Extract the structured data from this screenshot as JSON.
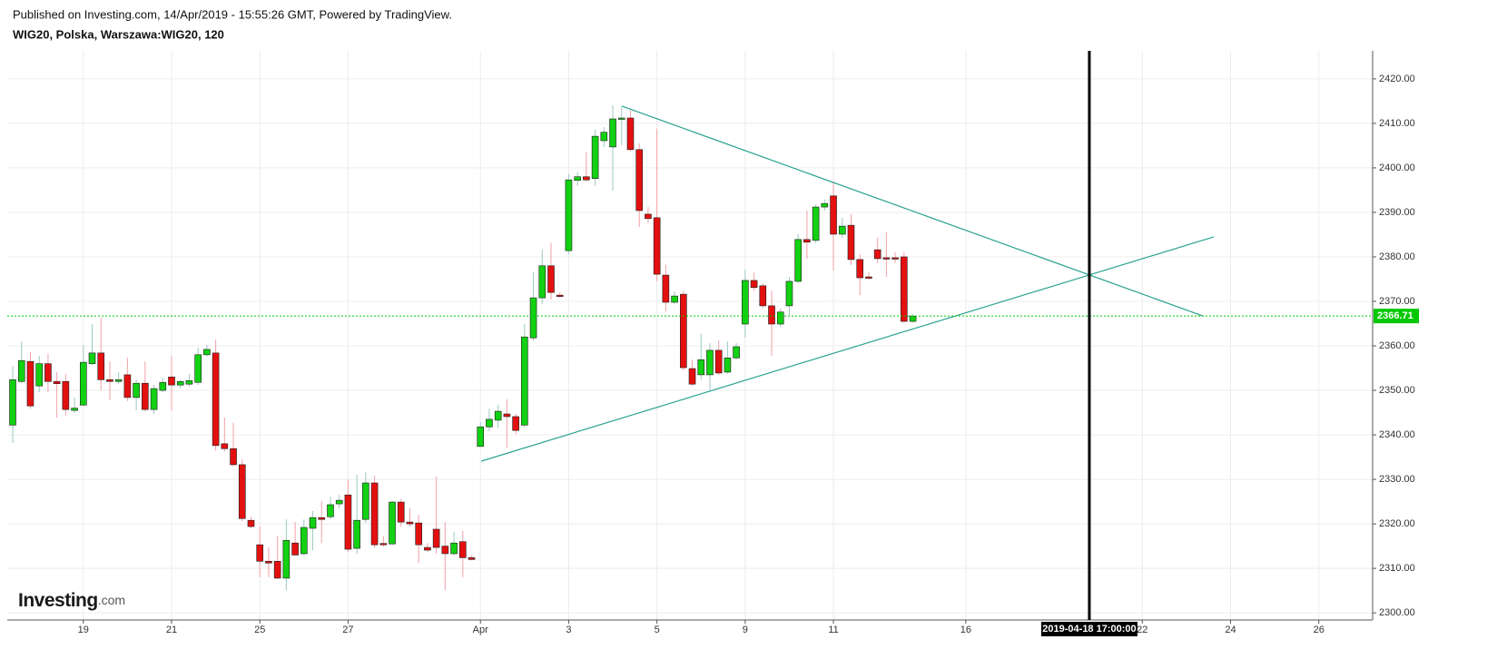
{
  "header": {
    "published": "Published on Investing.com, 14/Apr/2019 - 15:55:26 GMT, Powered by TradingView.",
    "symbol": "WIG20, Polska, Warszawa:WIG20, 120"
  },
  "logo": {
    "main": "Investing",
    "suffix": ".com"
  },
  "chart_data": {
    "type": "candlestick",
    "open": [
      2342.2,
      2352.0,
      2356.5,
      2351.0,
      2356.0,
      2352.0,
      2352.0,
      2345.5,
      2346.7,
      2356.0,
      2358.4,
      2352.4,
      2352.0,
      2353.5,
      2348.4,
      2351.6,
      2345.7,
      2350.0,
      2353.0,
      2351.2,
      2351.4,
      2351.8,
      2358.0,
      2358.4,
      2338.0,
      2336.9,
      2333.3,
      2320.8,
      2315.3,
      2311.6,
      2311.6,
      2307.8,
      2315.7,
      2313.3,
      2319.0,
      2321.4,
      2321.6,
      2324.5,
      2326.5,
      2314.5,
      2321.0,
      2329.2,
      2315.6,
      2315.5,
      2324.9,
      2320.4,
      2320.2,
      2314.7,
      2318.8,
      2315.0,
      2313.3,
      2316.0,
      2312.4,
      2337.4,
      2341.8,
      2343.3,
      2344.7,
      2344.1,
      2342.2,
      2361.8,
      2370.8,
      2378.0,
      2371.4,
      2381.4,
      2397.2,
      2398.0,
      2397.6,
      2406.1,
      2404.7,
      2411.0,
      2411.2,
      2404.1,
      2389.6,
      2388.8,
      2375.9,
      2369.8,
      2371.6,
      2354.9,
      2353.5,
      2353.5,
      2359.0,
      2354.1,
      2357.3,
      2364.9,
      2374.7,
      2373.5,
      2369.0,
      2364.9,
      2369.0,
      2374.5,
      2383.9,
      2383.7,
      2391.2,
      2393.7,
      2385.1,
      2387.1,
      2379.4,
      2375.5,
      2381.6,
      2379.8,
      2379.8,
      2380.0,
      2365.5
    ],
    "high": [
      2355.5,
      2361.0,
      2358.6,
      2357.8,
      2358.2,
      2354.1,
      2353.7,
      2348.4,
      2360.2,
      2364.9,
      2366.3,
      2356.5,
      2354.1,
      2357.3,
      2352.4,
      2356.5,
      2351.2,
      2352.9,
      2357.8,
      2352.4,
      2353.7,
      2359.6,
      2360.2,
      2361.4,
      2343.9,
      2342.7,
      2334.5,
      2321.6,
      2319.4,
      2314.7,
      2317.3,
      2321.0,
      2320.4,
      2321.0,
      2322.9,
      2325.1,
      2326.1,
      2326.5,
      2330.0,
      2331.0,
      2331.6,
      2330.8,
      2317.3,
      2325.1,
      2325.5,
      2323.5,
      2322.0,
      2315.7,
      2330.6,
      2320.4,
      2318.2,
      2318.4,
      2312.9,
      2342.9,
      2345.9,
      2346.7,
      2348.0,
      2344.7,
      2364.9,
      2376.5,
      2381.6,
      2383.1,
      2372.0,
      2398.6,
      2399.0,
      2403.5,
      2408.6,
      2409.2,
      2414.1,
      2413.7,
      2412.9,
      2405.5,
      2391.2,
      2408.8,
      2378.2,
      2372.2,
      2372.4,
      2356.9,
      2362.7,
      2360.6,
      2361.2,
      2361.0,
      2360.6,
      2377.1,
      2376.5,
      2374.1,
      2372.4,
      2368.4,
      2375.5,
      2385.1,
      2390.4,
      2391.8,
      2392.9,
      2396.9,
      2388.8,
      2389.6,
      2380.6,
      2376.5,
      2384.3,
      2385.5,
      2381.0,
      2381.0,
      2367.1
    ],
    "low": [
      2338.2,
      2351.6,
      2345.9,
      2349.6,
      2349.6,
      2343.9,
      2344.3,
      2344.9,
      2346.5,
      2355.7,
      2350.0,
      2347.8,
      2351.4,
      2347.6,
      2345.5,
      2345.3,
      2344.7,
      2349.6,
      2345.5,
      2350.4,
      2350.8,
      2351.2,
      2357.6,
      2336.5,
      2336.3,
      2332.9,
      2320.6,
      2319.0,
      2308.0,
      2308.0,
      2307.6,
      2305.1,
      2312.9,
      2312.9,
      2314.1,
      2315.7,
      2321.0,
      2323.5,
      2313.7,
      2313.3,
      2320.2,
      2314.5,
      2314.9,
      2315.3,
      2319.4,
      2319.4,
      2311.2,
      2313.7,
      2313.3,
      2305.1,
      2312.9,
      2308.0,
      2311.8,
      2337.3,
      2340.8,
      2341.6,
      2337.1,
      2340.2,
      2341.8,
      2361.2,
      2369.4,
      2370.4,
      2370.8,
      2380.6,
      2395.9,
      2396.9,
      2395.9,
      2404.7,
      2394.9,
      2405.1,
      2403.7,
      2386.7,
      2387.6,
      2374.5,
      2367.8,
      2369.4,
      2354.5,
      2351.0,
      2352.4,
      2350.0,
      2353.5,
      2353.7,
      2356.9,
      2361.8,
      2372.4,
      2368.4,
      2357.8,
      2364.3,
      2366.9,
      2374.1,
      2379.6,
      2383.1,
      2390.4,
      2376.9,
      2384.3,
      2378.2,
      2371.4,
      2374.9,
      2378.6,
      2375.5,
      2378.6,
      2365.3,
      2365.3
    ],
    "close": [
      2352.4,
      2356.7,
      2346.5,
      2356.0,
      2352.0,
      2351.5,
      2345.7,
      2346.0,
      2356.3,
      2358.4,
      2352.4,
      2352.0,
      2352.4,
      2348.4,
      2351.6,
      2345.7,
      2350.4,
      2351.8,
      2351.2,
      2352.0,
      2352.2,
      2358.0,
      2359.2,
      2337.6,
      2336.9,
      2333.3,
      2321.2,
      2319.4,
      2311.6,
      2311.2,
      2307.8,
      2316.3,
      2313.0,
      2319.2,
      2321.4,
      2321.0,
      2324.3,
      2325.3,
      2314.3,
      2320.8,
      2329.2,
      2315.3,
      2315.3,
      2324.9,
      2320.4,
      2320.0,
      2315.3,
      2314.1,
      2314.7,
      2313.3,
      2315.7,
      2312.4,
      2312.0,
      2341.8,
      2343.5,
      2345.3,
      2344.1,
      2341.0,
      2362.0,
      2370.8,
      2378.0,
      2372.0,
      2371.2,
      2397.3,
      2398.0,
      2397.3,
      2407.1,
      2408.0,
      2411.0,
      2411.2,
      2404.1,
      2390.4,
      2388.6,
      2376.1,
      2369.8,
      2371.2,
      2355.1,
      2351.4,
      2356.9,
      2359.0,
      2353.9,
      2357.3,
      2359.8,
      2374.7,
      2373.1,
      2369.0,
      2364.9,
      2367.6,
      2374.5,
      2383.9,
      2383.3,
      2391.2,
      2392.0,
      2385.1,
      2386.9,
      2379.4,
      2375.3,
      2375.3,
      2379.6,
      2379.6,
      2379.6,
      2365.5,
      2366.7
    ],
    "up_color": "#12d012",
    "down_color": "#e31010",
    "up_wick": "#9cc9c2",
    "down_wick": "#f2a0a8",
    "xlim": [
      -0.62,
      154.1
    ],
    "xticks": [
      {
        "value": 8,
        "label": "19"
      },
      {
        "value": 18,
        "label": "21"
      },
      {
        "value": 28,
        "label": "25"
      },
      {
        "value": 38,
        "label": "27"
      },
      {
        "value": 53,
        "label": "Apr"
      },
      {
        "value": 63,
        "label": "3"
      },
      {
        "value": 73,
        "label": "5"
      },
      {
        "value": 83,
        "label": "9"
      },
      {
        "value": 93,
        "label": "11"
      },
      {
        "value": 108,
        "label": "16"
      },
      {
        "value": 128,
        "label": "22"
      },
      {
        "value": 138,
        "label": "24"
      },
      {
        "value": 148,
        "label": "26"
      }
    ],
    "ylim": [
      2298.4,
      2426.3
    ],
    "yticks": [
      {
        "value": 2300,
        "label": "2300.00"
      },
      {
        "value": 2310,
        "label": "2310.00"
      },
      {
        "value": 2320,
        "label": "2320.00"
      },
      {
        "value": 2330,
        "label": "2330.00"
      },
      {
        "value": 2340,
        "label": "2340.00"
      },
      {
        "value": 2350,
        "label": "2350.00"
      },
      {
        "value": 2360,
        "label": "2360.00"
      },
      {
        "value": 2370,
        "label": "2370.00"
      },
      {
        "value": 2380,
        "label": "2380.00"
      },
      {
        "value": 2390,
        "label": "2390.00"
      },
      {
        "value": 2400,
        "label": "2400.00"
      },
      {
        "value": 2410,
        "label": "2410.00"
      },
      {
        "value": 2420,
        "label": "2420.00"
      }
    ],
    "grid": true,
    "last_price": 2366.71,
    "last_price_color": "#00c800",
    "trendlines": [
      {
        "x": [
          69,
          134.9
        ],
        "y": [
          2413.9,
          2366.7
        ],
        "color": "#2aa393"
      },
      {
        "x": [
          53.1,
          136.1
        ],
        "y": [
          2334.1,
          2384.5
        ],
        "color": "#2aa393"
      }
    ],
    "crosshair": {
      "x": 122,
      "label": "2019-04-18 17:00:00"
    }
  }
}
